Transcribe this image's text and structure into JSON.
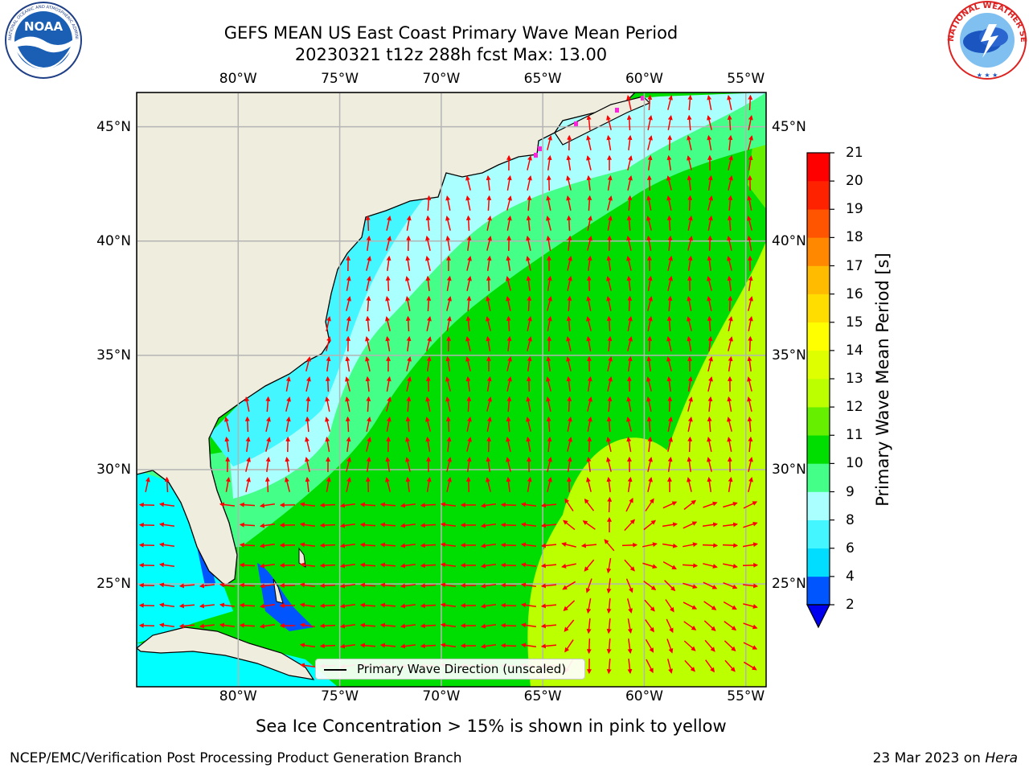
{
  "title": {
    "line1": "GEFS MEAN US East Coast Primary Wave Mean Period",
    "line2": "20230321 t12z 288h fcst   Max: 13.00"
  },
  "subcaption": "Sea Ice Concentration > 15% is shown in pink to yellow",
  "footer": {
    "left": "NCEP/EMC/Verification Post Processing Product Generation Branch",
    "right_date": "23 Mar 2023 on",
    "right_machine": "Hera"
  },
  "legend": {
    "label": "Primary Wave Direction (unscaled)"
  },
  "logos": {
    "left": "NOAA",
    "left_ring": "NATIONAL OCEANIC AND ATMOSPHERIC ADMINISTRATION · U.S. DEPARTMENT OF COMMERCE",
    "right_ring": "NATIONAL WEATHER SERVICE"
  },
  "map": {
    "lon_range": [
      -85,
      -54
    ],
    "lat_range": [
      20.5,
      46.5
    ],
    "lon_ticks": [
      "80°W",
      "75°W",
      "70°W",
      "65°W",
      "60°W",
      "55°W"
    ],
    "lat_ticks": [
      "45°N",
      "40°N",
      "35°N",
      "30°N",
      "25°N"
    ],
    "land_color": "#efedde",
    "grid_color": "#b4b4b4",
    "arrow_color": "#ff0000",
    "ice_color": "#ff22dd"
  },
  "colorbar": {
    "label": "Primary Wave Mean Period [s]",
    "ticks": [
      "2",
      "4",
      "6",
      "8",
      "9",
      "10",
      "11",
      "12",
      "13",
      "14",
      "15",
      "16",
      "17",
      "18",
      "19",
      "20",
      "21"
    ],
    "colors": [
      "#0055ff",
      "#00ddff",
      "#44f6ff",
      "#aaffff",
      "#44ff88",
      "#00dd00",
      "#66f000",
      "#bbff00",
      "#ddff00",
      "#ffff00",
      "#ffdd00",
      "#ffbb00",
      "#ff8800",
      "#ff5500",
      "#ff2200",
      "#ff0000"
    ],
    "extend_color": "#0000ee"
  }
}
